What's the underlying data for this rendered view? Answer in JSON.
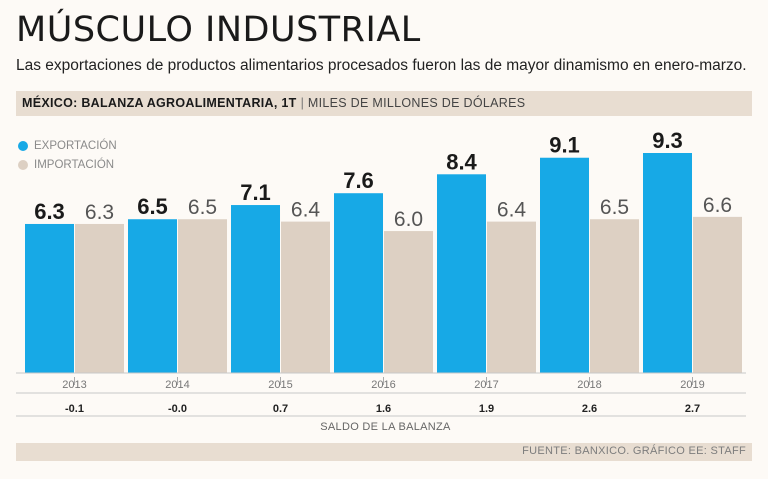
{
  "header": {
    "title": "MÚSCULO INDUSTRIAL",
    "subtitle": "Las exportaciones de productos alimentarios procesados fueron las de mayor dinamismo en enero-marzo.",
    "chart_label": "MÉXICO: BALANZA AGROALIMENTARIA, 1T",
    "separator": "|",
    "unit": "MILES DE MILLONES DE DÓLARES"
  },
  "legend": [
    {
      "label": "EXPORTACIÓN",
      "color": "#17a9e6"
    },
    {
      "label": "IMPORTACIÓN",
      "color": "#ddd0c3"
    }
  ],
  "chart_data": {
    "type": "bar",
    "categories": [
      "2013",
      "2014",
      "2015",
      "2016",
      "2017",
      "2018",
      "2019"
    ],
    "series": [
      {
        "name": "EXPORTACIÓN",
        "values": [
          6.3,
          6.5,
          7.1,
          7.6,
          8.4,
          9.1,
          9.3
        ],
        "labels": [
          "6.3",
          "6.5",
          "7.1",
          "7.6",
          "8.4",
          "9.1",
          "9.3"
        ],
        "color": "#17a9e6"
      },
      {
        "name": "IMPORTACIÓN",
        "values": [
          6.3,
          6.5,
          6.4,
          6.0,
          6.4,
          6.5,
          6.6
        ],
        "labels": [
          "6.3",
          "6.5",
          "6.4",
          "6.0",
          "6.4",
          "6.5",
          "6.6"
        ],
        "color": "#ddd0c3"
      }
    ],
    "balance": [
      "-0.1",
      "-0.0",
      "0.7",
      "1.6",
      "1.9",
      "2.6",
      "2.7"
    ],
    "balance_label": "SALDO DE LA BALANZA",
    "ylim": [
      0,
      9.3
    ]
  },
  "footer": {
    "source": "FUENTE: BANXICO. GRÁFICO EE: STAFF"
  }
}
